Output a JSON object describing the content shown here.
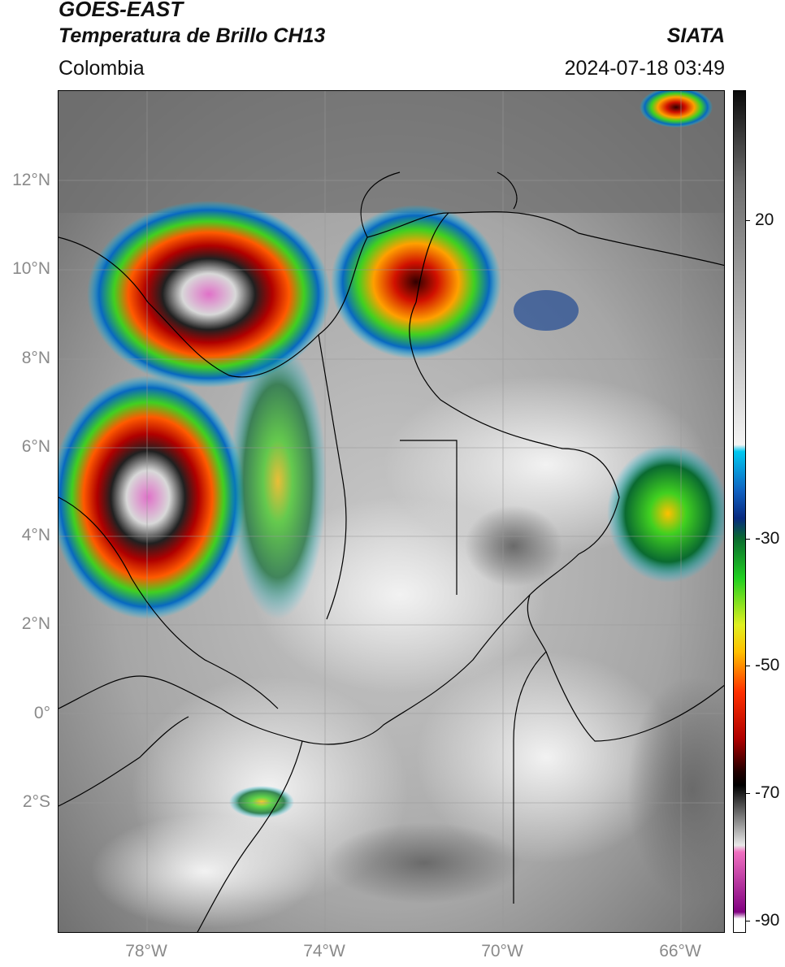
{
  "header": {
    "satellite": "GOES-EAST",
    "product": "Temperatura de Brillo CH13",
    "region": "Colombia",
    "source": "SIATA",
    "timestamp": "2024-07-18 03:49"
  },
  "map": {
    "lon_range": [
      -80,
      -65
    ],
    "lat_range": [
      -5,
      14
    ],
    "grid": true,
    "lat_ticks": [
      {
        "value": 12,
        "label": "12°N"
      },
      {
        "value": 10,
        "label": "10°N"
      },
      {
        "value": 8,
        "label": "8°N"
      },
      {
        "value": 6,
        "label": "6°N"
      },
      {
        "value": 4,
        "label": "4°N"
      },
      {
        "value": 2,
        "label": "2°N"
      },
      {
        "value": 0,
        "label": "0°"
      },
      {
        "value": -2,
        "label": "2°S"
      }
    ],
    "lon_ticks": [
      {
        "value": -78,
        "label": "78°W"
      },
      {
        "value": -74,
        "label": "74°W"
      },
      {
        "value": -70,
        "label": "70°W"
      },
      {
        "value": -66,
        "label": "66°W"
      }
    ]
  },
  "colorbar": {
    "range": [
      -92,
      34
    ],
    "ticks": [
      {
        "value": 20,
        "label": "20"
      },
      {
        "value": -30,
        "label": "-30"
      },
      {
        "value": -50,
        "label": "-50"
      },
      {
        "value": -70,
        "label": "-70"
      },
      {
        "value": -90,
        "label": "-90"
      }
    ],
    "stops": [
      {
        "value": 34,
        "color": "#0a0a0a"
      },
      {
        "value": 20,
        "color": "#6e6e6e"
      },
      {
        "value": -19,
        "color": "#f4f4f4"
      },
      {
        "value": -20,
        "color": "#00c8f0"
      },
      {
        "value": -26,
        "color": "#1060c0"
      },
      {
        "value": -30,
        "color": "#082a80"
      },
      {
        "value": -33,
        "color": "#0a6a30"
      },
      {
        "value": -39,
        "color": "#20d020"
      },
      {
        "value": -46,
        "color": "#e0f020"
      },
      {
        "value": -50,
        "color": "#ffc000"
      },
      {
        "value": -56,
        "color": "#ff3000"
      },
      {
        "value": -63,
        "color": "#b00000"
      },
      {
        "value": -68,
        "color": "#200000"
      },
      {
        "value": -70,
        "color": "#000000"
      },
      {
        "value": -79,
        "color": "#e8e8e8"
      },
      {
        "value": -80,
        "color": "#f070c0"
      },
      {
        "value": -89,
        "color": "#800080"
      },
      {
        "value": -90,
        "color": "#ffffff"
      },
      {
        "value": -92,
        "color": "#ffffff"
      }
    ]
  }
}
